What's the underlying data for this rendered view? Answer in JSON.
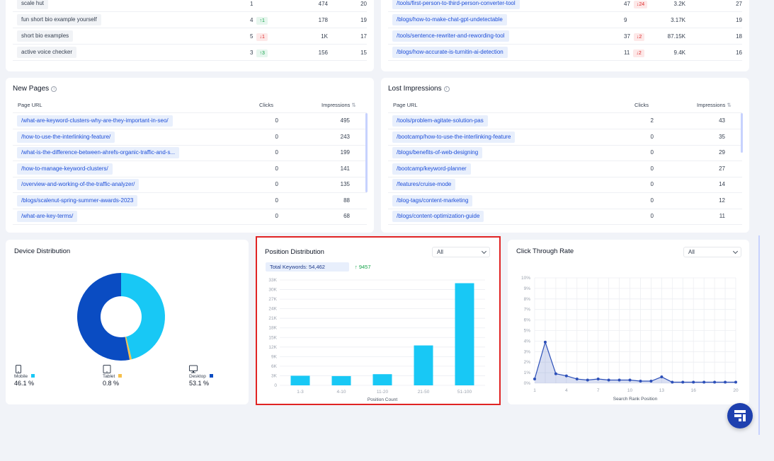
{
  "top_left": {
    "rows": [
      {
        "keyword": "scale hut",
        "position": "1",
        "change": "",
        "dir": "",
        "impressions": "474",
        "clicks": "20"
      },
      {
        "keyword": "fun short bio example yourself",
        "position": "4",
        "change": "↑1",
        "dir": "up",
        "impressions": "178",
        "clicks": "19"
      },
      {
        "keyword": "short bio examples",
        "position": "5",
        "change": "↓1",
        "dir": "down",
        "impressions": "1K",
        "clicks": "17"
      },
      {
        "keyword": "active voice checker",
        "position": "3",
        "change": "↑3",
        "dir": "up",
        "impressions": "156",
        "clicks": "15"
      }
    ]
  },
  "top_right": {
    "rows": [
      {
        "url": "/tools/first-person-to-third-person-converter-tool",
        "position": "47",
        "change": "↓24",
        "dir": "down",
        "impressions": "3.2K",
        "clicks": "27"
      },
      {
        "url": "/blogs/how-to-make-chat-gpt-undetectable",
        "position": "9",
        "change": "",
        "dir": "",
        "impressions": "3.17K",
        "clicks": "19"
      },
      {
        "url": "/tools/sentence-rewriter-and-rewording-tool",
        "position": "37",
        "change": "↓2",
        "dir": "down",
        "impressions": "87.15K",
        "clicks": "18"
      },
      {
        "url": "/blogs/how-accurate-is-turnitin-ai-detection",
        "position": "11",
        "change": "↓2",
        "dir": "down",
        "impressions": "9.4K",
        "clicks": "16"
      }
    ]
  },
  "new_pages": {
    "title": "New Pages",
    "info": "i",
    "col_url": "Page URL",
    "col_clicks": "Clicks",
    "col_impr": "Impressions",
    "sort_icon": "sort-icon",
    "rows": [
      {
        "url": "/what-are-keyword-clusters-why-are-they-important-in-seo/",
        "clicks": "0",
        "impr": "495"
      },
      {
        "url": "/how-to-use-the-interlinking-feature/",
        "clicks": "0",
        "impr": "243"
      },
      {
        "url": "/what-is-the-difference-between-ahrefs-organic-traffic-and-s...",
        "clicks": "0",
        "impr": "199"
      },
      {
        "url": "/how-to-manage-keyword-clusters/",
        "clicks": "0",
        "impr": "141"
      },
      {
        "url": "/overview-and-working-of-the-traffic-analyzer/",
        "clicks": "0",
        "impr": "135"
      },
      {
        "url": "/blogs/scalenut-spring-summer-awards-2023",
        "clicks": "0",
        "impr": "88"
      },
      {
        "url": "/what-are-key-terms/",
        "clicks": "0",
        "impr": "68"
      }
    ]
  },
  "lost_impressions": {
    "title": "Lost Impressions",
    "info": "i",
    "col_url": "Page URL",
    "col_clicks": "Clicks",
    "col_impr": "Impressions",
    "sort_icon": "sort-icon",
    "rows": [
      {
        "url": "/tools/problem-agitate-solution-pas",
        "clicks": "2",
        "impr": "43"
      },
      {
        "url": "/bootcamp/how-to-use-the-interlinking-feature",
        "clicks": "0",
        "impr": "35"
      },
      {
        "url": "/blogs/benefits-of-web-designing",
        "clicks": "0",
        "impr": "29"
      },
      {
        "url": "/bootcamp/keyword-planner",
        "clicks": "0",
        "impr": "27"
      },
      {
        "url": "/features/cruise-mode",
        "clicks": "0",
        "impr": "14"
      },
      {
        "url": "/blog-tags/content-marketing",
        "clicks": "0",
        "impr": "12"
      },
      {
        "url": "/blogs/content-optimization-guide",
        "clicks": "0",
        "impr": "11"
      }
    ]
  },
  "device": {
    "title": "Device Distribution",
    "items": [
      {
        "label": "Mobile",
        "value": "46.1 %",
        "icon": "mobile-icon",
        "color": "#18c8f5",
        "pct": 46.1
      },
      {
        "label": "Tablet",
        "value": "0.8 %",
        "icon": "tablet-icon",
        "color": "#f6c04b",
        "pct": 0.8
      },
      {
        "label": "Desktop",
        "value": "53.1 %",
        "icon": "desktop-icon",
        "color": "#0a4cc2",
        "pct": 53.1
      }
    ]
  },
  "position_dist": {
    "title": "Position Distribution",
    "filter": "All",
    "total_label": "Total Keywords: 54,462",
    "change": "↑ 9457",
    "highlight_color": "#e02424"
  },
  "ctr": {
    "title": "Click Through Rate",
    "filter": "All"
  },
  "chart_data": [
    {
      "type": "bar",
      "categories": [
        "1-3",
        "4-10",
        "11-20",
        "21-50",
        "51-100"
      ],
      "values": [
        3000,
        2900,
        3500,
        12500,
        32000
      ],
      "xlabel": "Position Count",
      "ylabel": "",
      "ylim": [
        0,
        33000
      ],
      "yticks": [
        "0",
        "3K",
        "6K",
        "9K",
        "12K",
        "15K",
        "18K",
        "21K",
        "24K",
        "27K",
        "30K",
        "33K"
      ],
      "color": "#18c8f5",
      "grid": true
    },
    {
      "type": "area",
      "x": [
        1,
        2,
        3,
        4,
        5,
        6,
        7,
        8,
        9,
        10,
        11,
        12,
        13,
        14,
        15,
        16,
        17,
        18,
        19,
        20
      ],
      "values": [
        0.4,
        3.9,
        0.9,
        0.7,
        0.4,
        0.3,
        0.4,
        0.3,
        0.3,
        0.3,
        0.2,
        0.2,
        0.6,
        0.1,
        0.1,
        0.1,
        0.1,
        0.1,
        0.1,
        0.1
      ],
      "xticks": [
        "1",
        "4",
        "7",
        "10",
        "13",
        "16",
        "20"
      ],
      "xtick_values": [
        1,
        4,
        7,
        10,
        13,
        16,
        20
      ],
      "yticks": [
        "0%",
        "1%",
        "2%",
        "3%",
        "4%",
        "5%",
        "6%",
        "7%",
        "8%",
        "9%",
        "10%"
      ],
      "xlabel": "Search Rank Position",
      "ylabel": "",
      "ylim": [
        0,
        10
      ],
      "color": "#2c4fb8",
      "grid": true
    }
  ],
  "fab": {
    "icon": "scalenut-logo-icon"
  }
}
